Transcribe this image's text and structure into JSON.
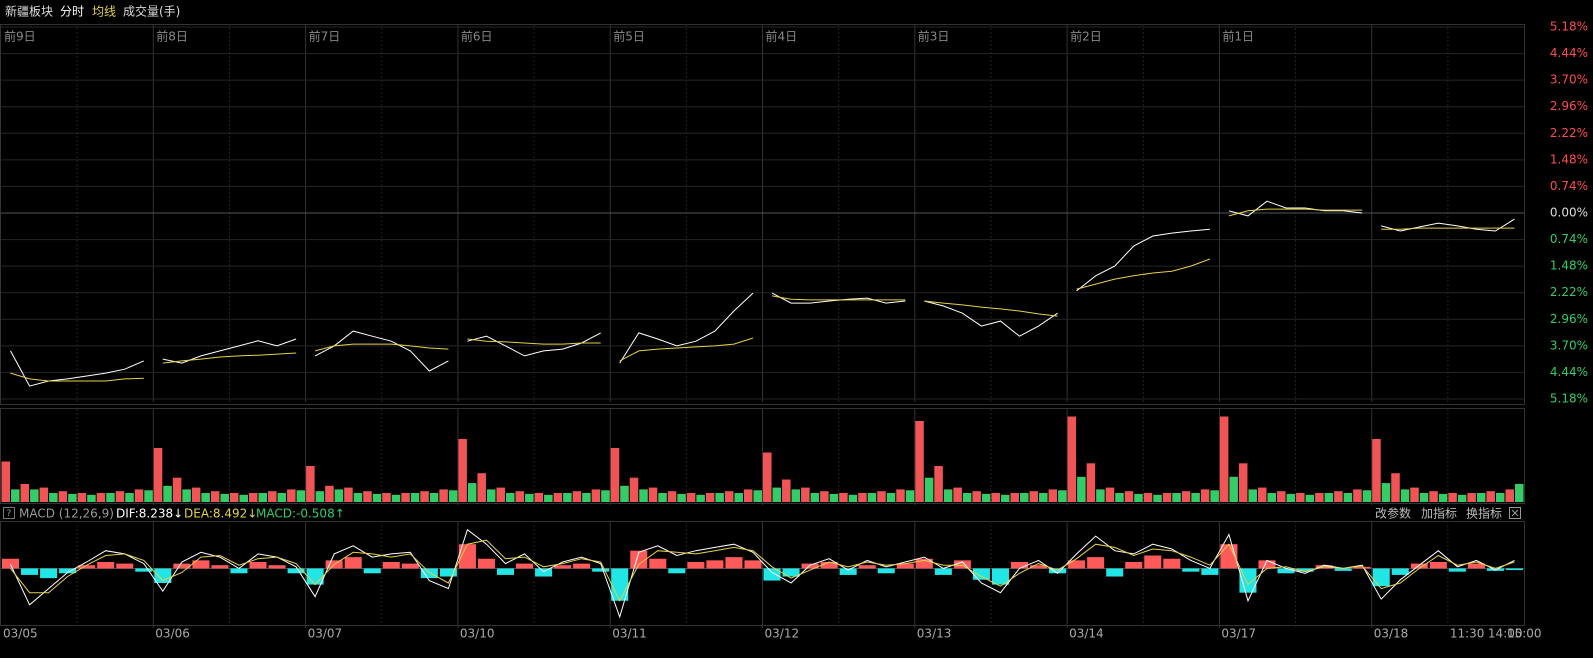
{
  "header": {
    "title": "新疆板块",
    "mode": "分时",
    "buttons": [
      "改参数",
      "加指标",
      "换指标"
    ]
  },
  "chart_data": [
    {
      "type": "line",
      "categories": [
        "前9日",
        null,
        null,
        null,
        null,
        null,
        null,
        null,
        "前8日",
        null,
        null,
        null,
        null,
        null,
        null,
        null,
        "前7日",
        null,
        null,
        null,
        null,
        null,
        null,
        null,
        "前6日",
        null,
        null,
        null,
        null,
        null,
        null,
        null,
        "前5日",
        null,
        null,
        null,
        null,
        null,
        null,
        null,
        "前4日",
        null,
        null,
        null,
        null,
        null,
        null,
        null,
        "前3日",
        null,
        null,
        null,
        null,
        null,
        null,
        null,
        "前2日",
        null,
        null,
        null,
        null,
        null,
        null,
        null,
        "前1日",
        null,
        null,
        null,
        null,
        null,
        null,
        null,
        null,
        null,
        null,
        null,
        null,
        null,
        null,
        null
      ],
      "series": [
        {
          "color": "#ffffff",
          "values": [
            -3.84,
            -4.82,
            -4.68,
            -4.62,
            -4.54,
            -4.46,
            -4.35,
            -4.12,
            -4.07,
            -4.18,
            -3.98,
            -3.84,
            -3.7,
            -3.56,
            -3.7,
            -3.51,
            -3.98,
            -3.7,
            -3.29,
            -3.43,
            -3.57,
            -3.84,
            -4.4,
            -4.12,
            -3.57,
            -3.43,
            -3.7,
            -3.98,
            -3.84,
            -3.79,
            -3.62,
            -3.34,
            -4.18,
            -3.34,
            -3.51,
            -3.7,
            -3.57,
            -3.29,
            -2.73,
            -2.23,
            -2.23,
            -2.51,
            -2.51,
            -2.45,
            -2.4,
            -2.37,
            -2.51,
            -2.45,
            -2.45,
            -2.59,
            -2.79,
            -3.15,
            -3.01,
            -3.43,
            -3.15,
            -2.79,
            -2.17,
            -1.75,
            -1.48,
            -0.92,
            -0.64,
            -0.56,
            -0.5,
            -0.45,
            0.06,
            -0.08,
            0.33,
            0.14,
            0.14,
            0.06,
            0.06,
            0.0,
            -0.36,
            -0.5,
            -0.39,
            -0.28,
            -0.36,
            -0.45,
            -0.5,
            -0.17
          ]
        },
        {
          "name": "均线",
          "color": "#e6d04a",
          "values": [
            -4.46,
            -4.62,
            -4.68,
            -4.68,
            -4.68,
            -4.68,
            -4.62,
            -4.6,
            -4.18,
            -4.12,
            -4.07,
            -4.01,
            -3.98,
            -3.96,
            -3.93,
            -3.9,
            -3.84,
            -3.7,
            -3.65,
            -3.65,
            -3.65,
            -3.7,
            -3.76,
            -3.79,
            -3.51,
            -3.57,
            -3.59,
            -3.62,
            -3.65,
            -3.65,
            -3.62,
            -3.62,
            -4.12,
            -3.84,
            -3.79,
            -3.76,
            -3.73,
            -3.7,
            -3.65,
            -3.48,
            -2.31,
            -2.4,
            -2.42,
            -2.42,
            -2.42,
            -2.42,
            -2.42,
            -2.42,
            -2.45,
            -2.51,
            -2.56,
            -2.62,
            -2.67,
            -2.73,
            -2.81,
            -2.87,
            -2.12,
            -1.98,
            -1.84,
            -1.75,
            -1.67,
            -1.62,
            -1.48,
            -1.28,
            -0.08,
            0.06,
            0.11,
            0.11,
            0.11,
            0.08,
            0.08,
            0.08,
            -0.45,
            -0.45,
            -0.42,
            -0.42,
            -0.42,
            -0.42,
            -0.42,
            -0.42
          ]
        }
      ],
      "ylim": [
        -5.18,
        5.18
      ],
      "yticks": [
        {
          "value": 5.18,
          "label": "5.18%"
        },
        {
          "value": 4.44,
          "label": "4.44%"
        },
        {
          "value": 3.7,
          "label": "3.70%"
        },
        {
          "value": 2.96,
          "label": "2.96%"
        },
        {
          "value": 2.22,
          "label": "2.22%"
        },
        {
          "value": 1.48,
          "label": "1.48%"
        },
        {
          "value": 0.74,
          "label": "0.74%"
        },
        {
          "value": 0,
          "label": "0.00%"
        },
        {
          "value": -0.74,
          "label": "0.74%"
        },
        {
          "value": -1.48,
          "label": "1.48%"
        },
        {
          "value": -2.22,
          "label": "2.22%"
        },
        {
          "value": -2.96,
          "label": "2.96%"
        },
        {
          "value": -3.7,
          "label": "3.70%"
        },
        {
          "value": -4.44,
          "label": "4.44%"
        },
        {
          "value": -5.18,
          "label": "5.18%"
        }
      ],
      "grid": true,
      "up_color": "#ff4d4d",
      "down_color": "#33cc66"
    },
    {
      "type": "bar",
      "title": "成交量(手)",
      "series": [
        {
          "color": "#f05454",
          "values": [
            45,
            20,
            16,
            12,
            10,
            10,
            12,
            14,
            60,
            27,
            16,
            12,
            10,
            10,
            12,
            14,
            40,
            18,
            16,
            12,
            10,
            10,
            12,
            14,
            70,
            32,
            16,
            12,
            10,
            10,
            12,
            14,
            60,
            27,
            16,
            12,
            10,
            10,
            12,
            14,
            55,
            25,
            16,
            12,
            10,
            10,
            12,
            14,
            90,
            40,
            16,
            12,
            10,
            10,
            12,
            14,
            95,
            43,
            16,
            12,
            10,
            10,
            12,
            14,
            95,
            43,
            16,
            12,
            10,
            10,
            12,
            14,
            70,
            32,
            16,
            12,
            10,
            10,
            12,
            14
          ]
        },
        {
          "color": "#33cc66",
          "values": [
            14,
            14,
            10,
            9,
            8,
            10,
            10,
            13,
            18,
            14,
            10,
            9,
            8,
            10,
            10,
            13,
            12,
            14,
            10,
            9,
            8,
            10,
            10,
            13,
            21,
            14,
            10,
            9,
            8,
            10,
            10,
            13,
            18,
            14,
            10,
            9,
            8,
            10,
            10,
            13,
            16,
            14,
            10,
            9,
            8,
            10,
            10,
            13,
            27,
            14,
            10,
            9,
            8,
            10,
            10,
            13,
            28,
            14,
            10,
            9,
            8,
            10,
            10,
            13,
            28,
            14,
            10,
            9,
            8,
            10,
            10,
            13,
            21,
            14,
            10,
            9,
            8,
            10,
            10,
            20
          ]
        }
      ],
      "ylim": [
        0,
        100
      ]
    },
    {
      "type": "combo",
      "title": "MACD (12,26,9)",
      "categories": [
        "03/05",
        null,
        null,
        null,
        null,
        null,
        null,
        null,
        "03/06",
        null,
        null,
        null,
        null,
        null,
        null,
        null,
        "03/07",
        null,
        null,
        null,
        null,
        null,
        null,
        null,
        "03/10",
        null,
        null,
        null,
        null,
        null,
        null,
        null,
        "03/11",
        null,
        null,
        null,
        null,
        null,
        null,
        null,
        "03/12",
        null,
        null,
        null,
        null,
        null,
        null,
        null,
        "03/13",
        null,
        null,
        null,
        null,
        null,
        null,
        null,
        "03/14",
        null,
        null,
        null,
        null,
        null,
        null,
        null,
        "03/17",
        null,
        null,
        null,
        null,
        null,
        null,
        null,
        "03/18",
        null,
        null,
        null,
        "11:30",
        null,
        "14:00",
        "15:00"
      ],
      "series": [
        {
          "name": "DIF:8.238↓",
          "color": "#ffffff",
          "values": [
            5,
            -45,
            -25,
            -5,
            8,
            22,
            18,
            6,
            -28,
            8,
            20,
            14,
            0,
            18,
            14,
            2,
            -35,
            18,
            28,
            14,
            18,
            20,
            -15,
            -25,
            48,
            30,
            6,
            18,
            -4,
            8,
            14,
            6,
            -60,
            20,
            28,
            16,
            22,
            26,
            30,
            20,
            -5,
            -18,
            4,
            12,
            -2,
            10,
            2,
            8,
            14,
            0,
            8,
            -18,
            -30,
            0,
            10,
            -6,
            18,
            40,
            22,
            18,
            30,
            24,
            10,
            0,
            42,
            -40,
            10,
            0,
            -6,
            4,
            0,
            4,
            -38,
            -14,
            4,
            22,
            2,
            10,
            -2,
            10
          ]
        },
        {
          "name": "DEA:8.492↓",
          "color": "#e6d04a",
          "values": [
            0,
            -30,
            -30,
            -10,
            4,
            16,
            18,
            10,
            -15,
            -5,
            14,
            16,
            4,
            12,
            14,
            6,
            -20,
            5,
            20,
            18,
            14,
            18,
            -5,
            -18,
            30,
            35,
            12,
            14,
            2,
            6,
            12,
            8,
            -40,
            5,
            22,
            20,
            18,
            22,
            26,
            22,
            2,
            -12,
            -2,
            8,
            2,
            8,
            4,
            6,
            10,
            4,
            4,
            -10,
            -22,
            -6,
            6,
            -2,
            12,
            30,
            26,
            16,
            24,
            22,
            14,
            4,
            30,
            -20,
            0,
            2,
            -4,
            2,
            0,
            3,
            -25,
            -18,
            0,
            16,
            4,
            8,
            0,
            8
          ]
        },
        {
          "name": "MACD:-0.508↑",
          "color": "#33cc66",
          "up_color": "#ff5a5a",
          "down_color": "#22e5e5",
          "values": [
            12,
            -8,
            -12,
            -6,
            4,
            8,
            6,
            -4,
            -18,
            6,
            10,
            4,
            -6,
            8,
            4,
            -6,
            -20,
            10,
            14,
            -6,
            8,
            6,
            -12,
            -10,
            30,
            12,
            -8,
            6,
            -10,
            4,
            6,
            -4,
            -40,
            22,
            12,
            -6,
            8,
            10,
            14,
            10,
            -15,
            -10,
            6,
            8,
            -8,
            4,
            -6,
            6,
            12,
            -8,
            10,
            -14,
            -20,
            8,
            4,
            -6,
            10,
            14,
            -10,
            8,
            16,
            12,
            -4,
            -8,
            30,
            -30,
            10,
            -6,
            -4,
            4,
            -3,
            2,
            -22,
            -8,
            6,
            8,
            -4,
            6,
            -3,
            -2
          ]
        }
      ],
      "ylim": [
        -70,
        55
      ]
    }
  ]
}
